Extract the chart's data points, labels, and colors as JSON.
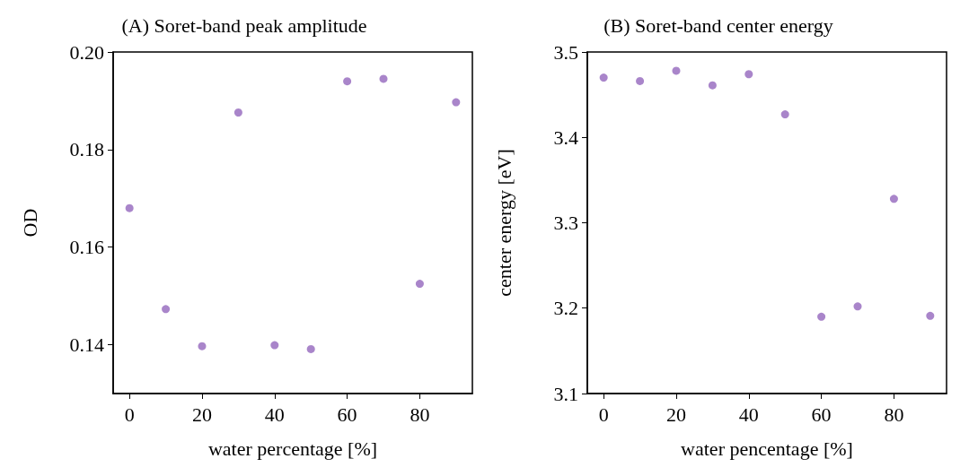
{
  "chart_data": [
    {
      "type": "scatter",
      "title": "(A) Soret-band peak amplitude",
      "xlabel": "water percentage [%]",
      "ylabel": "OD",
      "x": [
        0,
        10,
        20,
        30,
        40,
        50,
        60,
        70,
        80,
        90
      ],
      "series": [
        {
          "color": "#9467bd",
          "values": [
            0.168,
            0.1473,
            0.1397,
            0.1876,
            0.1399,
            0.1391,
            0.194,
            0.1945,
            0.1525,
            0.1897
          ]
        }
      ],
      "xlim": [
        -4.5,
        94.5
      ],
      "xticks": [
        0,
        20,
        40,
        60,
        80
      ],
      "ylim": [
        0.13,
        0.2
      ],
      "yticks": [
        0.14,
        0.16,
        0.18,
        {
          "value": 0.2,
          "label": "0.20"
        }
      ],
      "grid": false,
      "marker": "circle"
    },
    {
      "type": "scatter",
      "title": "(B) Soret-band center energy",
      "xlabel": "water pencentage [%]",
      "ylabel": "center energy [eV]",
      "x": [
        0,
        10,
        20,
        30,
        40,
        50,
        60,
        70,
        80,
        90
      ],
      "series": [
        {
          "color": "#9467bd",
          "values": [
            3.47,
            3.466,
            3.478,
            3.461,
            3.474,
            3.427,
            3.19,
            3.202,
            3.328,
            3.191
          ]
        }
      ],
      "xlim": [
        -4.5,
        94.5
      ],
      "xticks": [
        0,
        20,
        40,
        60,
        80
      ],
      "ylim": [
        3.1,
        3.5
      ],
      "yticks": [
        3.1,
        3.2,
        3.3,
        3.4,
        3.5
      ],
      "grid": false,
      "marker": "circle"
    }
  ]
}
